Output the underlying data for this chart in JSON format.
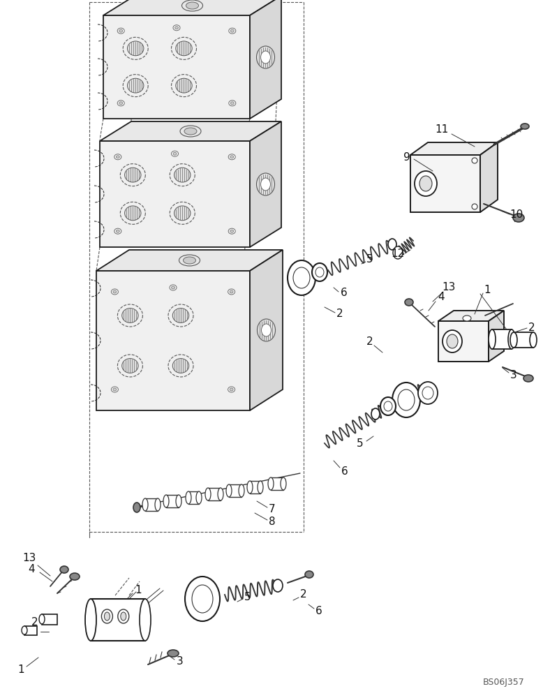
{
  "background_color": "#ffffff",
  "image_code": "BS06J357",
  "line_color": "#1a1a1a",
  "dash_color": "#555555",
  "gray": "#333333",
  "light": "#888888"
}
